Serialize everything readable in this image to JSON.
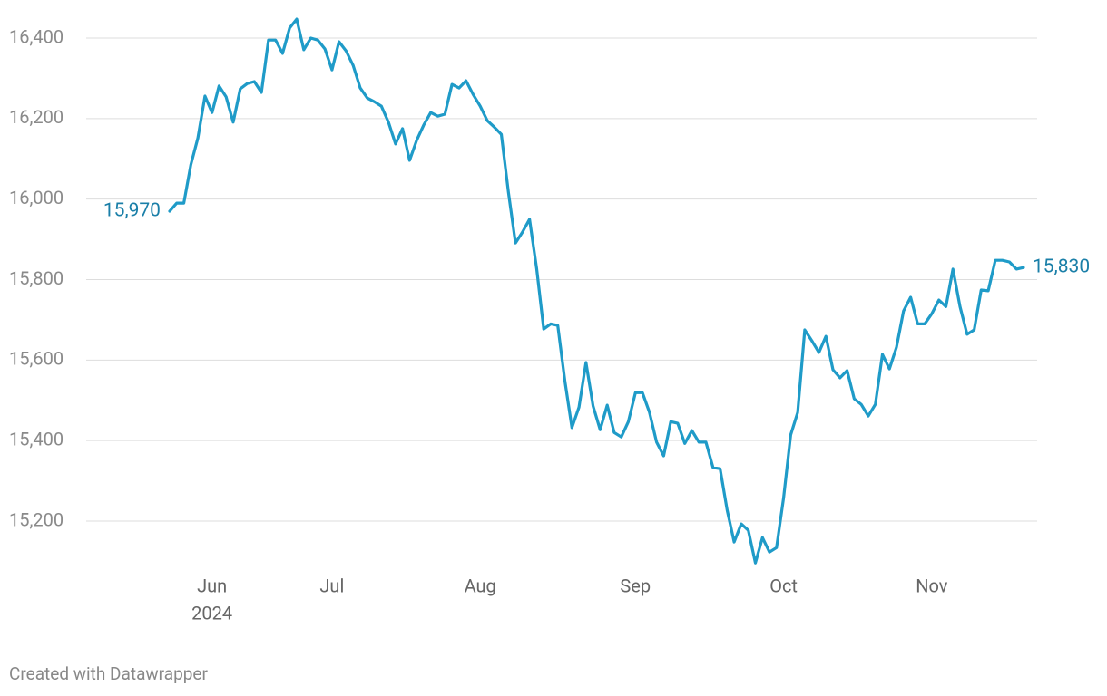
{
  "chart_data": {
    "type": "line",
    "year_label": "2024",
    "footer": "Created with Datawrapper",
    "categories": [
      null,
      null,
      null,
      null,
      null,
      null,
      "Jun",
      null,
      null,
      null,
      null,
      null,
      null,
      null,
      null,
      null,
      null,
      null,
      null,
      null,
      null,
      null,
      null,
      "Jul",
      null,
      null,
      null,
      null,
      null,
      null,
      null,
      null,
      null,
      null,
      null,
      null,
      null,
      null,
      null,
      null,
      null,
      null,
      null,
      null,
      "Aug",
      null,
      null,
      null,
      null,
      null,
      null,
      null,
      null,
      null,
      null,
      null,
      null,
      null,
      null,
      null,
      null,
      null,
      null,
      null,
      null,
      null,
      "Sep",
      null,
      null,
      null,
      null,
      null,
      null,
      null,
      null,
      null,
      null,
      null,
      null,
      null,
      null,
      null,
      null,
      null,
      null,
      null,
      null,
      "Oct",
      null,
      null,
      null,
      null,
      null,
      null,
      null,
      null,
      null,
      null,
      null,
      null,
      null,
      null,
      null,
      null,
      null,
      null,
      null,
      null,
      "Nov",
      null,
      null,
      null,
      null,
      null,
      null,
      null,
      null,
      null,
      null,
      null,
      null,
      null
    ],
    "series": [
      {
        "name": null,
        "color": "#1f9bc8",
        "values": [
          15970,
          15990,
          15990,
          16085,
          16152,
          16256,
          16215,
          16281,
          16254,
          16191,
          16274,
          16287,
          16292,
          16265,
          16395,
          16395,
          16362,
          16425,
          16447,
          16371,
          16400,
          16395,
          16373,
          16321,
          16391,
          16368,
          16332,
          16276,
          16251,
          16242,
          16231,
          16191,
          16137,
          16175,
          16096,
          16146,
          16184,
          16215,
          16206,
          16211,
          16285,
          16276,
          16294,
          16260,
          16231,
          16195,
          16179,
          16161,
          16017,
          15891,
          15918,
          15950,
          15828,
          15677,
          15690,
          15686,
          15549,
          15432,
          15483,
          15594,
          15486,
          15427,
          15488,
          15420,
          15409,
          15447,
          15519,
          15519,
          15470,
          15396,
          15362,
          15447,
          15443,
          15393,
          15425,
          15396,
          15396,
          15333,
          15330,
          15227,
          15148,
          15193,
          15177,
          15096,
          15159,
          15123,
          15134,
          15258,
          15414,
          15470,
          15675,
          15648,
          15619,
          15659,
          15576,
          15556,
          15574,
          15504,
          15490,
          15461,
          15490,
          15614,
          15578,
          15632,
          15722,
          15756,
          15690,
          15690,
          15715,
          15749,
          15733,
          15826,
          15733,
          15664,
          15675,
          15774,
          15772,
          15848,
          15848,
          15844,
          15826,
          15830
        ],
        "value_labels": [
          "15,970",
          null,
          null,
          null,
          null,
          null,
          null,
          null,
          null,
          null,
          null,
          null,
          null,
          null,
          null,
          null,
          null,
          null,
          null,
          null,
          null,
          null,
          null,
          null,
          null,
          null,
          null,
          null,
          null,
          null,
          null,
          null,
          null,
          null,
          null,
          null,
          null,
          null,
          null,
          null,
          null,
          null,
          null,
          null,
          null,
          null,
          null,
          null,
          null,
          null,
          null,
          null,
          null,
          null,
          null,
          null,
          null,
          null,
          null,
          null,
          null,
          null,
          null,
          null,
          null,
          null,
          null,
          null,
          null,
          null,
          null,
          null,
          null,
          null,
          null,
          null,
          null,
          null,
          null,
          null,
          null,
          null,
          null,
          null,
          null,
          null,
          null,
          null,
          null,
          null,
          null,
          null,
          null,
          null,
          null,
          null,
          null,
          null,
          null,
          null,
          null,
          null,
          null,
          null,
          null,
          null,
          null,
          null,
          null,
          null,
          null,
          null,
          null,
          null,
          null,
          null,
          null,
          null,
          null,
          null,
          null,
          "15,830"
        ],
        "label_color": "#1a7fa8"
      }
    ],
    "ylim": [
      15100,
      16450
    ],
    "yticks": [
      {
        "value": 15200,
        "label": "15,200"
      },
      {
        "value": 15400,
        "label": "15,400"
      },
      {
        "value": 15600,
        "label": "15,600"
      },
      {
        "value": 15800,
        "label": "15,800"
      },
      {
        "value": 16000,
        "label": "16,000"
      },
      {
        "value": 16200,
        "label": "16,200"
      },
      {
        "value": 16400,
        "label": "16,400"
      }
    ],
    "grid": true
  }
}
